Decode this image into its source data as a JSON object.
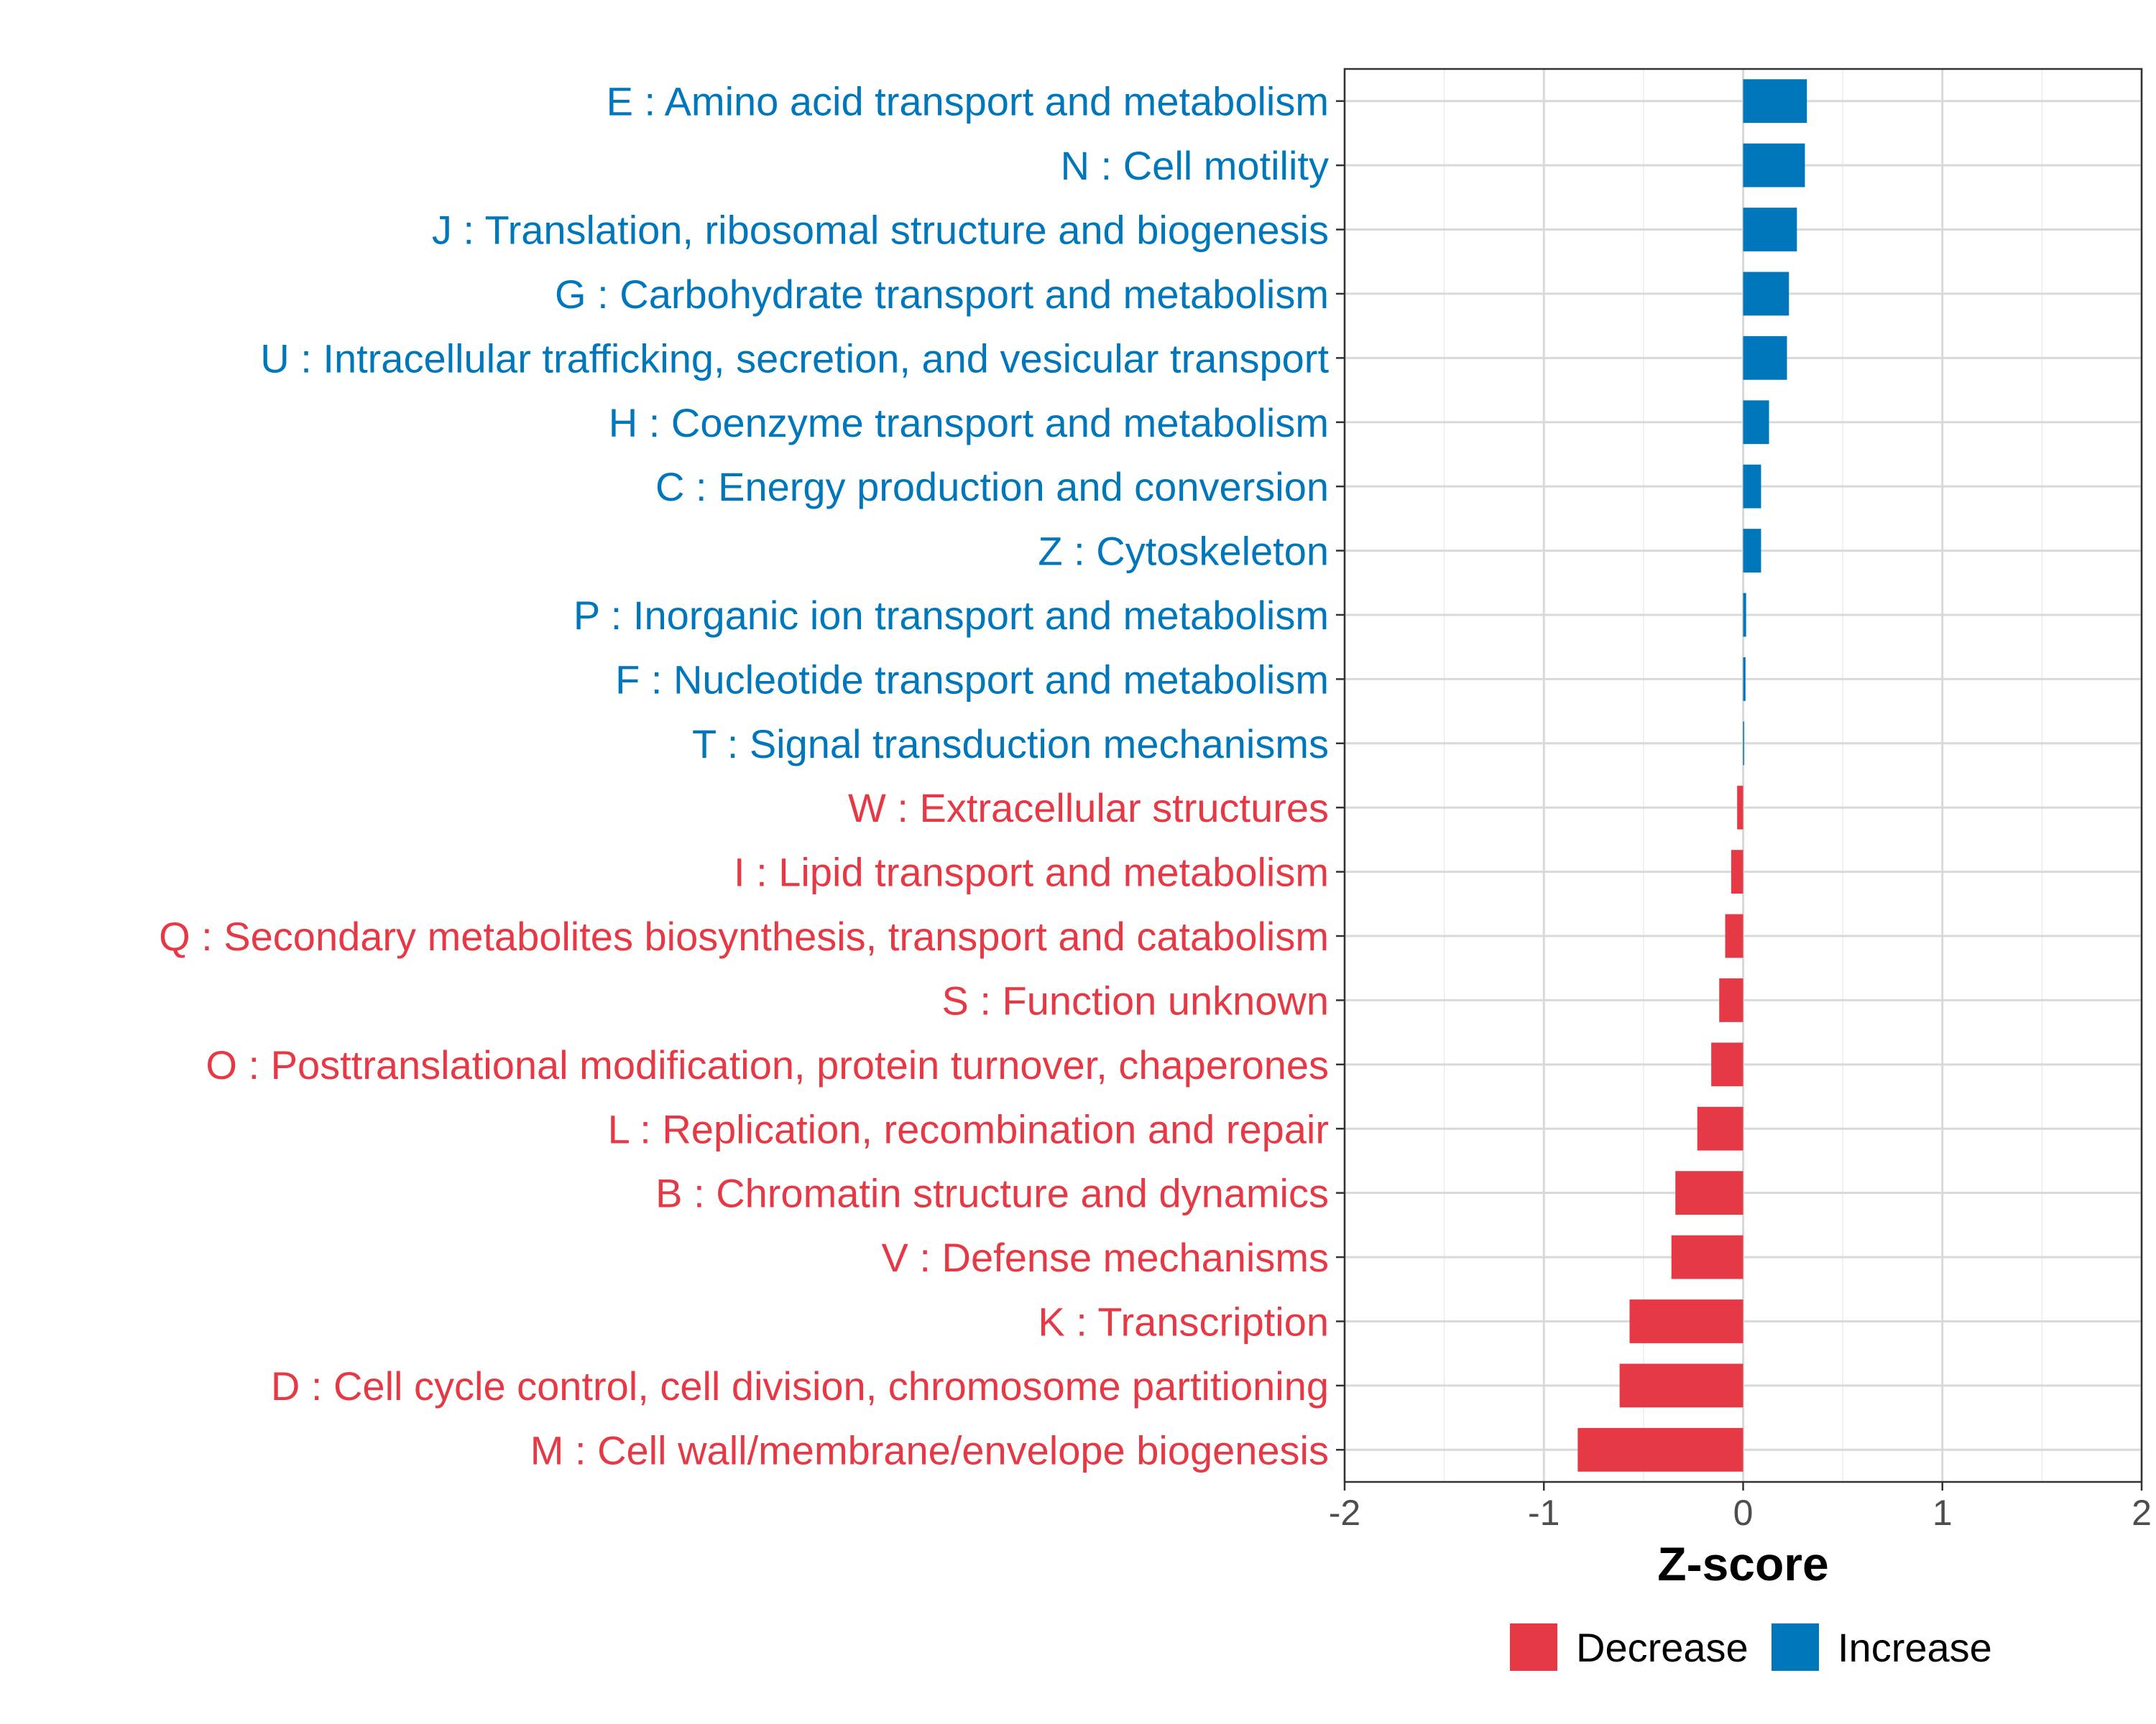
{
  "chart_data": {
    "type": "bar",
    "orientation": "horizontal",
    "xlabel": "Z-score",
    "xlim": [
      -2,
      2
    ],
    "xticks": [
      -2,
      -1,
      0,
      1,
      2
    ],
    "xtick_labels": [
      "-2",
      "-1",
      "0",
      "1",
      "2"
    ],
    "grid": true,
    "legend_position": "bottom",
    "legend": [
      {
        "name": "Decrease",
        "color": "#E63946"
      },
      {
        "name": "Increase",
        "color": "#0077BB"
      }
    ],
    "categories": [
      "E : Amino acid transport and metabolism",
      "N : Cell motility",
      "J : Translation, ribosomal structure and biogenesis",
      "G : Carbohydrate transport and metabolism",
      "U : Intracellular trafficking, secretion, and vesicular transport",
      "H : Coenzyme transport and metabolism",
      "C : Energy production and conversion",
      "Z : Cytoskeleton",
      "P : Inorganic ion transport and metabolism",
      "F : Nucleotide transport and metabolism",
      "T : Signal transduction mechanisms",
      "W : Extracellular structures",
      "I : Lipid transport and metabolism",
      "Q : Secondary metabolites biosynthesis, transport and catabolism",
      "S : Function unknown",
      "O : Posttranslational modification, protein turnover, chaperones",
      "L : Replication, recombination and repair",
      "B : Chromatin structure and dynamics",
      "V : Defense mechanisms",
      "K : Transcription",
      "D : Cell cycle control, cell division, chromosome partitioning",
      "M : Cell wall/membrane/envelope biogenesis"
    ],
    "values": [
      0.32,
      0.31,
      0.27,
      0.23,
      0.22,
      0.13,
      0.09,
      0.09,
      0.015,
      0.012,
      0.005,
      -0.03,
      -0.06,
      -0.09,
      -0.12,
      -0.16,
      -0.23,
      -0.34,
      -0.36,
      -0.57,
      -0.62,
      -0.83
    ],
    "groups": [
      "Increase",
      "Increase",
      "Increase",
      "Increase",
      "Increase",
      "Increase",
      "Increase",
      "Increase",
      "Increase",
      "Increase",
      "Increase",
      "Decrease",
      "Decrease",
      "Decrease",
      "Decrease",
      "Decrease",
      "Decrease",
      "Decrease",
      "Decrease",
      "Decrease",
      "Decrease",
      "Decrease"
    ]
  }
}
